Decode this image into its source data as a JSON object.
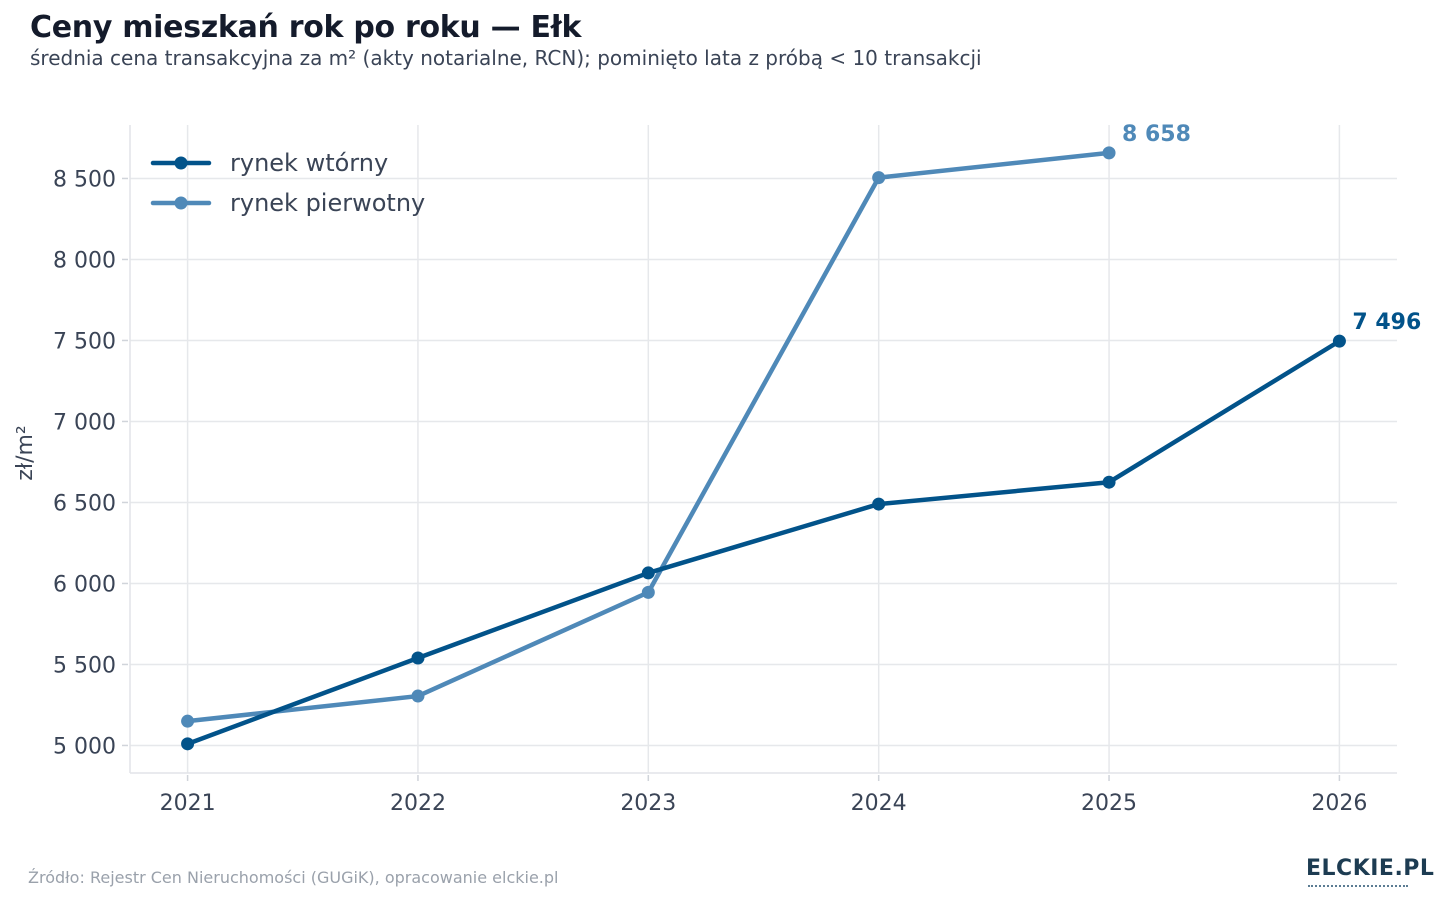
{
  "header": {
    "title": "Ceny mieszkań rok po roku — Ełk",
    "subtitle": "średnia cena transakcyjna za m² (akty notarialne, RCN); pominięto lata z próbą < 10 transakcji"
  },
  "footer": {
    "source": "Źródło: Rejestr Cen Nieruchomości (GUGiK), opracowanie elckie.pl",
    "logo": "ELCKIE.PL"
  },
  "chart_data": {
    "type": "line",
    "title": "Ceny mieszkań rok po roku — Ełk",
    "subtitle": "średnia cena transakcyjna za m² (akty notarialne, RCN); pominięto lata z próbą < 10 transakcji",
    "xlabel": "",
    "ylabel": "zł/m²",
    "x": [
      2021,
      2022,
      2023,
      2024,
      2025,
      2026
    ],
    "x_tick_labels": [
      "2021",
      "2022",
      "2023",
      "2024",
      "2025",
      "2026"
    ],
    "xlim": [
      2020.75,
      2026.25
    ],
    "ylim": [
      4830,
      8830
    ],
    "y_ticks": [
      5000,
      5500,
      6000,
      6500,
      7000,
      7500,
      8000,
      8500
    ],
    "y_tick_labels": [
      "5 000",
      "5 500",
      "6 000",
      "6 500",
      "7 000",
      "7 500",
      "8 000",
      "8 500"
    ],
    "grid": true,
    "legend_position": "top-left",
    "series": [
      {
        "name": "rynek wtórny",
        "color": "#02538a",
        "x": [
          2021,
          2022,
          2023,
          2024,
          2025,
          2026
        ],
        "values": [
          5010,
          5540,
          6065,
          6490,
          6625,
          7496
        ],
        "end_label": "7 496"
      },
      {
        "name": "rynek pierwotny",
        "color": "#4f89b8",
        "x": [
          2021,
          2022,
          2023,
          2024,
          2025
        ],
        "values": [
          5150,
          5305,
          5945,
          8505,
          8658
        ],
        "end_label": "8 658"
      }
    ]
  }
}
